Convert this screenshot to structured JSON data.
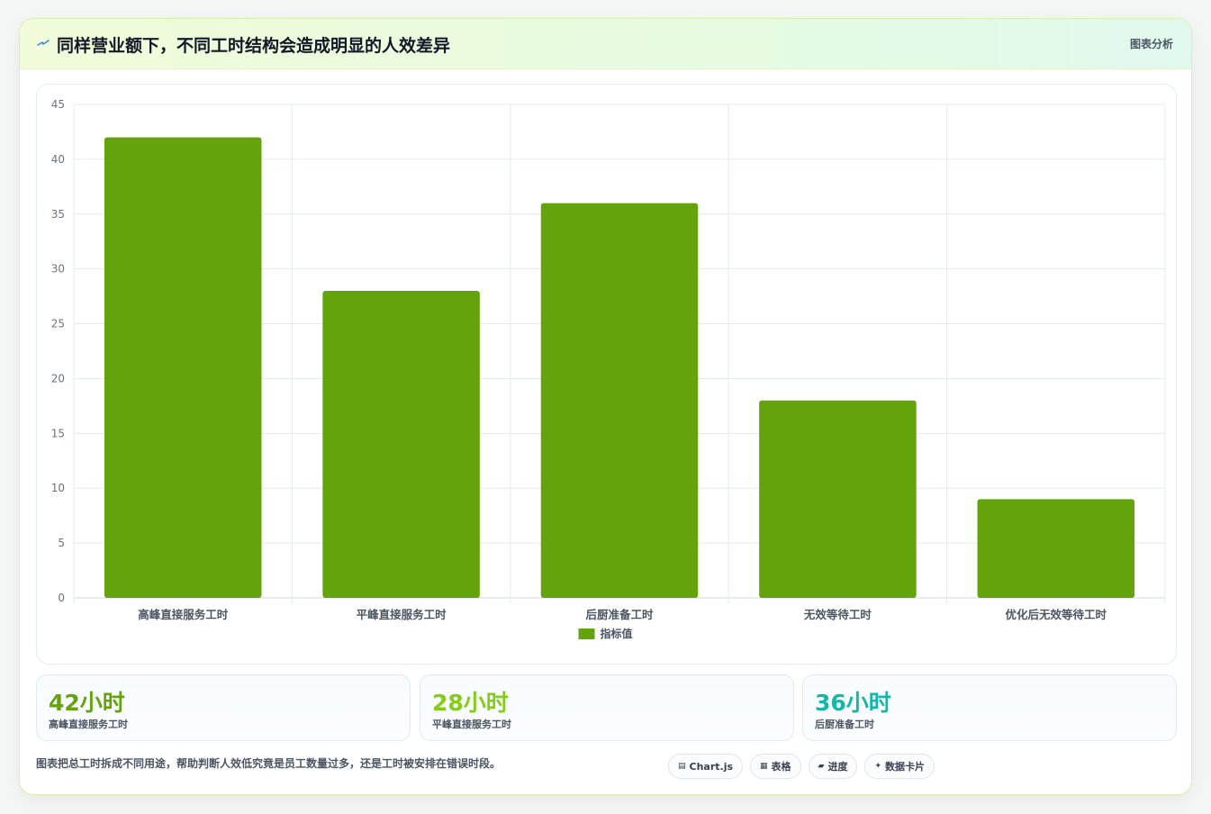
{
  "header": {
    "title": "同样营业额下，不同工时结构会造成明显的人效差异",
    "tag": "图表分析",
    "icon": "lightning-icon"
  },
  "chart_data": {
    "type": "bar",
    "categories": [
      "高峰直接服务工时",
      "平峰直接服务工时",
      "后厨准备工时",
      "无效等待工时",
      "优化后无效等待工时"
    ],
    "series": [
      {
        "name": "指标值",
        "values": [
          42,
          28,
          36,
          18,
          9
        ],
        "color": "#65a30d"
      }
    ],
    "ylim": [
      0,
      45
    ],
    "yticks": [
      0,
      5,
      10,
      15,
      20,
      25,
      30,
      35,
      40,
      45
    ],
    "grid": true,
    "legend": "bottom"
  },
  "kpis": [
    {
      "value": "42小时",
      "label": "高峰直接服务工时",
      "color": "#65a30d"
    },
    {
      "value": "28小时",
      "label": "平峰直接服务工时",
      "color": "#84cc16"
    },
    {
      "value": "36小时",
      "label": "后厨准备工时",
      "color": "#14b8a6"
    }
  ],
  "footnote": "图表把总工时拆成不同用途，帮助判断人效低究竟是员工数量过多，还是工时被安排在错误时段。",
  "chips": [
    {
      "icon": "chart-icon",
      "glyph": "▤",
      "label": "Chart.js"
    },
    {
      "icon": "table-icon",
      "glyph": "▦",
      "label": "表格"
    },
    {
      "icon": "progress-icon",
      "glyph": "▰",
      "label": "进度"
    },
    {
      "icon": "sparkle-icon",
      "glyph": "✦",
      "label": "数据卡片"
    }
  ]
}
